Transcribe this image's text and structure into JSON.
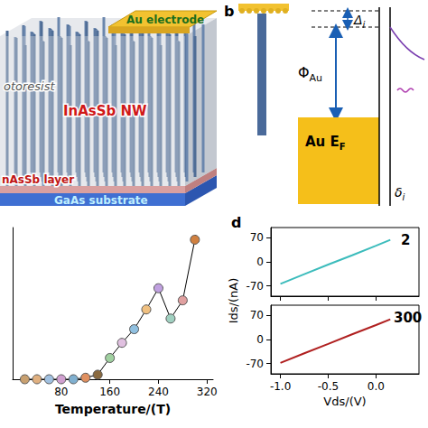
{
  "diagrams": {
    "a": {
      "labels": {
        "electrode": "Au electrode",
        "resist": "otoresist",
        "nanowire": "InAsSb NW",
        "layer": "nAsSb layer",
        "substrate": "GaAs substrate"
      }
    },
    "b": {
      "letter": "b",
      "barrier": {
        "text": "Δ",
        "sub": "i"
      },
      "work_function": {
        "text": "Φ",
        "sub": "Au"
      },
      "fermi": {
        "text": "Au E",
        "sub": "F"
      },
      "gap": {
        "text": "δ",
        "sub": "i"
      }
    }
  },
  "letters": {
    "d": "d"
  },
  "chart_data": [
    {
      "type": "line",
      "x_label": "Temperature/(T)",
      "x": [
        20,
        40,
        60,
        80,
        100,
        120,
        140,
        160,
        180,
        200,
        220,
        240,
        260,
        280,
        300
      ],
      "values": [
        0,
        0,
        0,
        0,
        0,
        1,
        3,
        14,
        24,
        33,
        46,
        60,
        40,
        52,
        92
      ],
      "colors": [
        "#c8a070",
        "#e0b080",
        "#a0c0e0",
        "#d0a0d0",
        "#80b0d0",
        "#e09060",
        "#8a6a40",
        "#a0d0a0",
        "#e0c0e0",
        "#90c0e0",
        "#f0c080",
        "#c0a0e0",
        "#a0d0c0",
        "#e0a0a0",
        "#d08040"
      ],
      "marker": "circle",
      "xlim": [
        0,
        330
      ],
      "xticks": [
        80,
        160,
        240,
        320
      ],
      "ylim": [
        0,
        100
      ],
      "tick_labels": "x"
    },
    {
      "type": "line",
      "y_label": "Ids/(nA)",
      "annotation": "2",
      "x": [
        -1.0,
        -0.75,
        -0.5,
        -0.25,
        0.0,
        0.15
      ],
      "values": [
        -64,
        -36,
        -8,
        19,
        47,
        64
      ],
      "color": "#3cbcbc",
      "xlim": [
        -1.1,
        0.45
      ],
      "xticks": [
        {
          "value": -1,
          "label": "-1.0"
        },
        {
          "value": -0.5,
          "label": "-0.5"
        },
        {
          "value": 0,
          "label": "0.0"
        }
      ],
      "ylim": [
        -100,
        100
      ],
      "yticks": [
        -70,
        0,
        70
      ],
      "tick_labels": "y"
    },
    {
      "type": "line",
      "x_label": "Vds/(V)",
      "annotation": "300",
      "x": [
        -1.0,
        -0.75,
        -0.5,
        -0.25,
        0.0,
        0.15
      ],
      "values": [
        -68,
        -40,
        -13,
        15,
        42,
        59
      ],
      "color": "#b02020",
      "xlim": [
        -1.1,
        0.45
      ],
      "xticks": [
        {
          "value": -1,
          "label": "-1.0"
        },
        {
          "value": -0.5,
          "label": "-0.5"
        },
        {
          "value": 0,
          "label": "0.0"
        }
      ],
      "ylim": [
        -100,
        100
      ],
      "yticks": [
        -70,
        0,
        70
      ],
      "tick_labels": true
    }
  ]
}
